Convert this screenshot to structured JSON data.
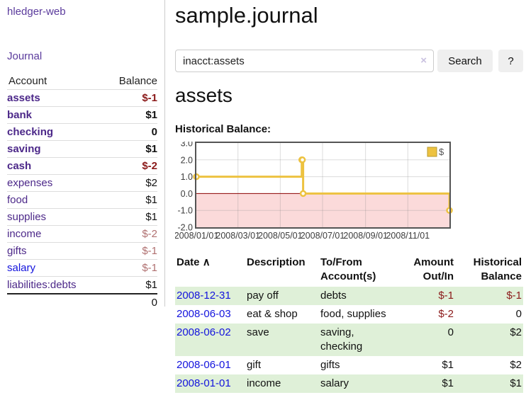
{
  "app": {
    "brand": "hledger-web",
    "nav_journal": "Journal"
  },
  "colors": {
    "brand-purple": "#5a3a9c",
    "purple": "#4c2889",
    "link-blue": "#1313dd",
    "neg-strong": "#8b1a1a",
    "neg-muted": "#b07070",
    "row-green": "#dff0d8",
    "series-yellow": "#edc240"
  },
  "sidebar": {
    "headers": [
      "Account",
      "Balance"
    ],
    "accounts": [
      {
        "name": "assets",
        "level": 1,
        "bold": true,
        "balance": "$-1",
        "neg": "strong"
      },
      {
        "name": "bank",
        "level": 2,
        "bold": true,
        "balance": "$1",
        "neg": "none"
      },
      {
        "name": "checking",
        "level": 3,
        "bold": true,
        "balance": "0",
        "neg": "none"
      },
      {
        "name": "saving",
        "level": 3,
        "bold": true,
        "balance": "$1",
        "neg": "none"
      },
      {
        "name": "cash",
        "level": 2,
        "bold": true,
        "balance": "$-2",
        "neg": "strong"
      },
      {
        "name": "expenses",
        "level": 1,
        "bold": false,
        "balance": "$2",
        "neg": "none"
      },
      {
        "name": "food",
        "level": 2,
        "bold": false,
        "balance": "$1",
        "neg": "none"
      },
      {
        "name": "supplies",
        "level": 2,
        "bold": false,
        "balance": "$1",
        "neg": "none"
      },
      {
        "name": "income",
        "level": 1,
        "bold": false,
        "balance": "$-2",
        "neg": "muted"
      },
      {
        "name": "gifts",
        "level": 2,
        "bold": false,
        "balance": "$-1",
        "neg": "muted"
      },
      {
        "name": "salary",
        "level": 2,
        "bold": false,
        "balance": "$-1",
        "neg": "muted",
        "blue_link": true
      },
      {
        "name": "liabilities:debts",
        "level": 1,
        "bold": false,
        "balance": "$1",
        "neg": "none"
      }
    ],
    "total": "0"
  },
  "main": {
    "title": "sample.journal",
    "search": {
      "value": "inacct:assets",
      "clear_icon": "×",
      "button_label": "Search",
      "help_label": "?"
    },
    "account_heading": "assets",
    "chart_label": "Historical Balance:"
  },
  "chart_data": {
    "type": "line",
    "step": true,
    "title": "Historical Balance",
    "series": [
      {
        "name": "$",
        "color": "#edc240",
        "points": [
          [
            "2008-01-01",
            1
          ],
          [
            "2008-06-01",
            2
          ],
          [
            "2008-06-02",
            2
          ],
          [
            "2008-06-03",
            0
          ],
          [
            "2008-12-31",
            -1
          ]
        ]
      }
    ],
    "x_range": [
      "2008-01-01",
      "2008-12-31"
    ],
    "ylim": [
      -2,
      3
    ],
    "y_ticks": [
      "3.0",
      "2.0",
      "1.0",
      "0.0",
      "-1.0",
      "-2.0"
    ],
    "x_ticks": [
      "2008/01/01",
      "2008/03/01",
      "2008/05/01",
      "2008/07/01",
      "2008/09/01",
      "2008/11/01"
    ],
    "legend": [
      "$"
    ],
    "legend_position": "top-right",
    "grid": true,
    "negative_fill": "#fbdada",
    "zero_line_color": "#8b0000"
  },
  "register": {
    "headers": {
      "date": "Date",
      "sort_icon": "∧",
      "description": "Description",
      "accounts": "To/From Account(s)",
      "amount": "Amount Out/In",
      "balance": "Historical Balance"
    },
    "rows": [
      {
        "date": "2008-12-31",
        "description": "pay off",
        "accounts": "debts",
        "amount": "$-1",
        "amount_neg": true,
        "balance": "$-1",
        "balance_neg": true
      },
      {
        "date": "2008-06-03",
        "description": "eat & shop",
        "accounts": "food, supplies",
        "amount": "$-2",
        "amount_neg": true,
        "balance": "0",
        "balance_neg": false
      },
      {
        "date": "2008-06-02",
        "description": "save",
        "accounts": "saving, checking",
        "amount": "0",
        "amount_neg": false,
        "balance": "$2",
        "balance_neg": false
      },
      {
        "date": "2008-06-01",
        "description": "gift",
        "accounts": "gifts",
        "amount": "$1",
        "amount_neg": false,
        "balance": "$2",
        "balance_neg": false
      },
      {
        "date": "2008-01-01",
        "description": "income",
        "accounts": "salary",
        "amount": "$1",
        "amount_neg": false,
        "balance": "$1",
        "balance_neg": false
      }
    ]
  }
}
